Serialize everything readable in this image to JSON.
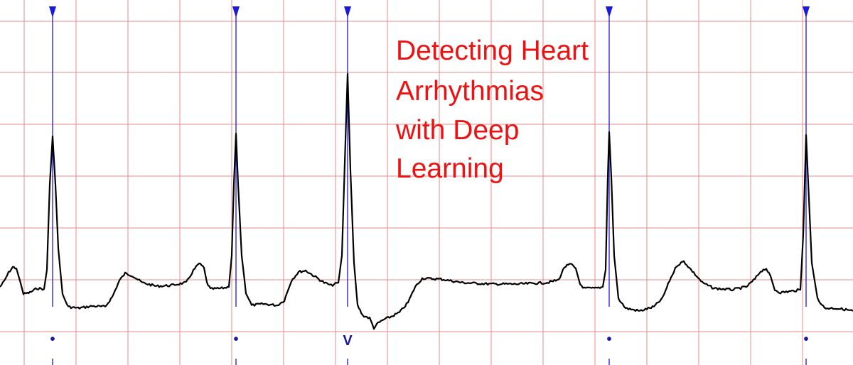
{
  "title": {
    "lines": [
      "Detecting Heart",
      "Arrhythmias",
      "with Deep",
      "Learning"
    ]
  },
  "colors": {
    "grid": "#e88b8b",
    "trace": "#000000",
    "marker": "#1a1ad8",
    "beat_label": "#1a1aa0",
    "title": "#ee1111",
    "background": "#ffffff"
  },
  "beats": [
    {
      "label": "•",
      "type": "normal"
    },
    {
      "label": "•",
      "type": "normal"
    },
    {
      "label": "V",
      "type": "ventricular"
    },
    {
      "label": "•",
      "type": "normal"
    },
    {
      "label": "•",
      "type": "normal"
    }
  ]
}
